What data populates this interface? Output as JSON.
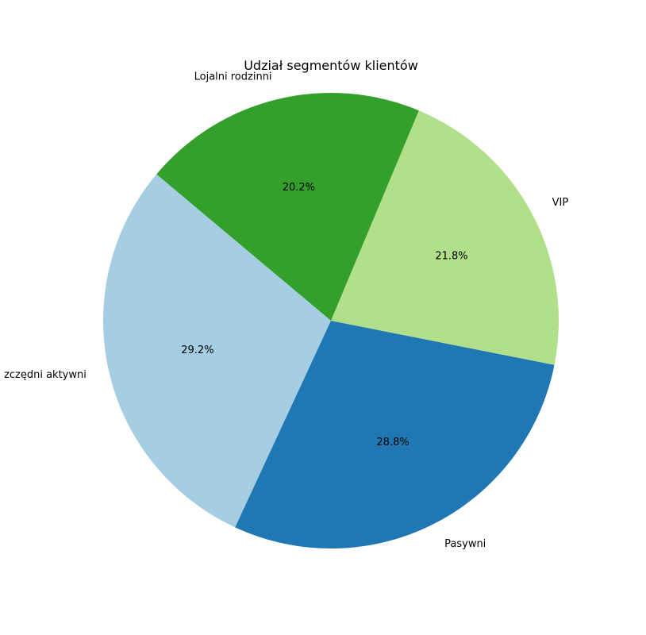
{
  "chart_data": {
    "type": "pie",
    "title": "Udział segmentów klientów",
    "start_angle_deg": 140,
    "direction": "counterclockwise",
    "slices": [
      {
        "label": "Oszczędni aktywni",
        "display_label": "zczędni aktywni",
        "value": 29.2,
        "pct_label": "29.2%",
        "color": "#a6cee3"
      },
      {
        "label": "Pasywni",
        "display_label": "Pasywni",
        "value": 28.8,
        "pct_label": "28.8%",
        "color": "#1f78b4"
      },
      {
        "label": "VIP",
        "display_label": "VIP",
        "value": 21.8,
        "pct_label": "21.8%",
        "color": "#b2df8a"
      },
      {
        "label": "Lojalni rodzinni",
        "display_label": "Lojalni rodzinni",
        "value": 20.2,
        "pct_label": "20.2%",
        "color": "#33a02c"
      }
    ]
  }
}
